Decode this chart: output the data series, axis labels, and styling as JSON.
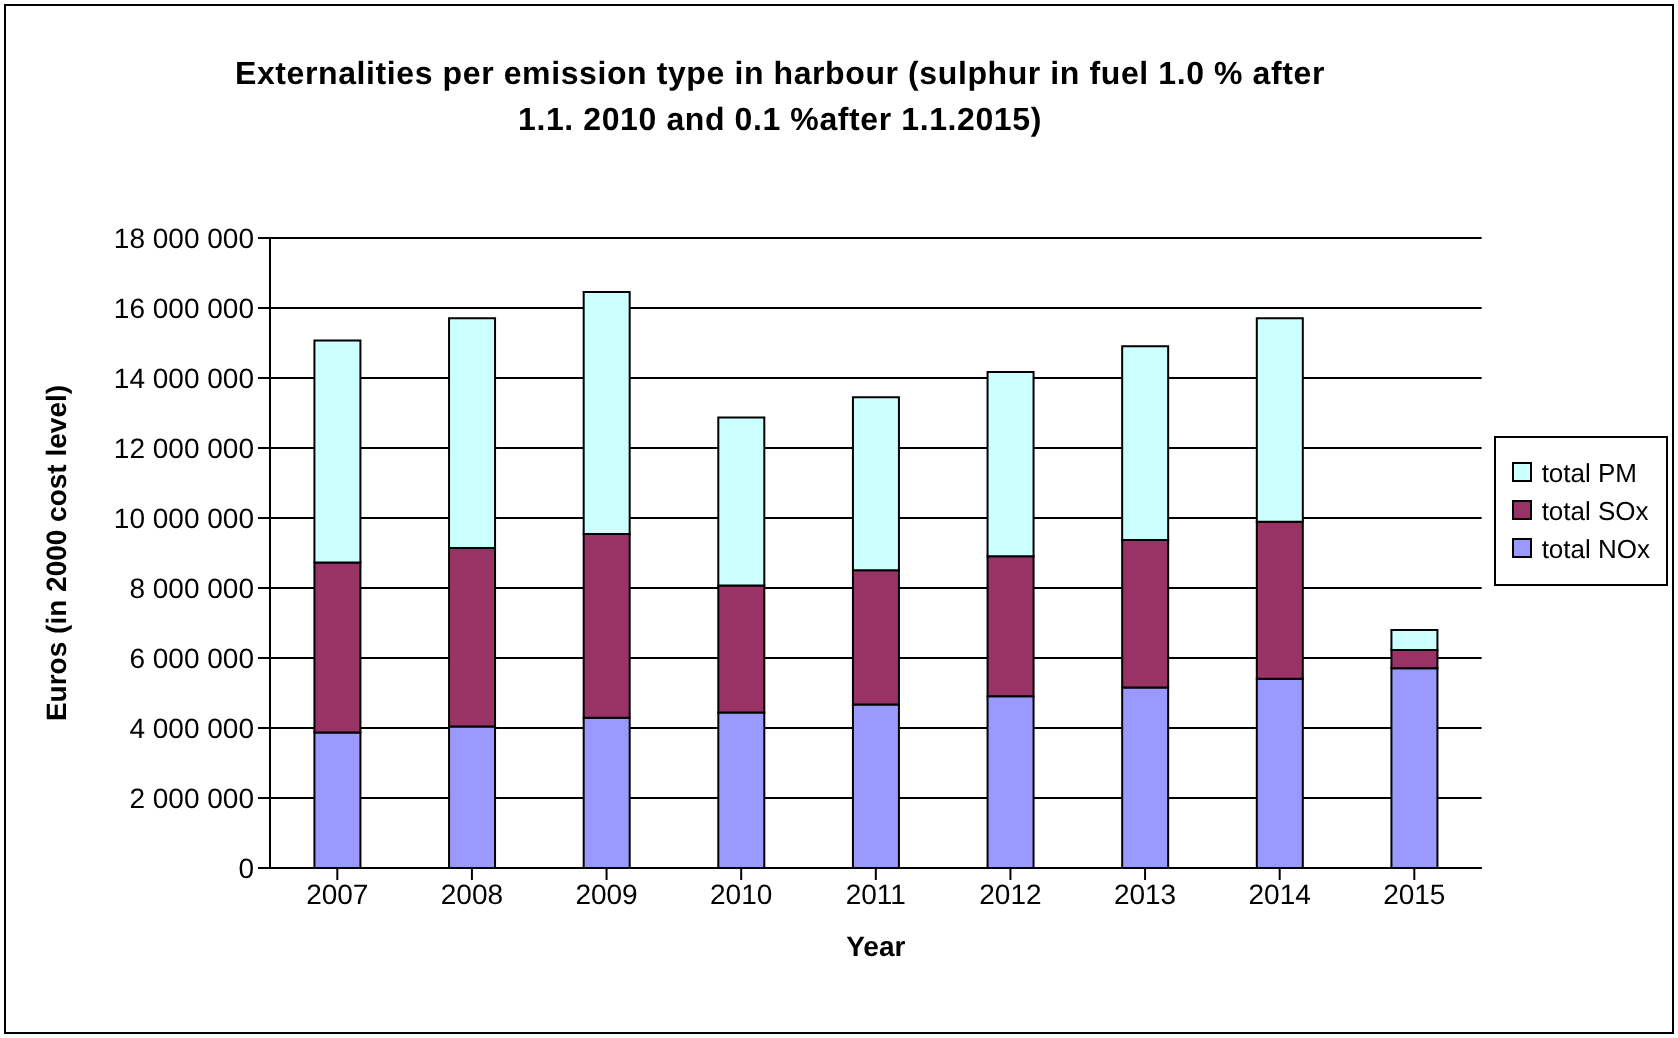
{
  "chart_data": {
    "type": "bar",
    "stacked": true,
    "title": "Externalities per emission type in harbour (sulphur in fuel 1.0 % after 1.1. 2010 and 0.1 %after 1.1.2015)",
    "xlabel": "Year",
    "ylabel": "Euros (in 2000 cost level)",
    "categories": [
      "2007",
      "2008",
      "2009",
      "2010",
      "2011",
      "2012",
      "2013",
      "2014",
      "2015"
    ],
    "series": [
      {
        "name": "total NOx",
        "color": "#9999ff",
        "values": [
          3870000,
          4040000,
          4290000,
          4440000,
          4670000,
          4910000,
          5160000,
          5410000,
          5710000
        ]
      },
      {
        "name": "total SOx",
        "color": "#993366",
        "values": [
          4860000,
          5100000,
          5250000,
          3630000,
          3840000,
          4000000,
          4210000,
          4480000,
          520000
        ]
      },
      {
        "name": "total PM",
        "color": "#ccffff",
        "values": [
          6340000,
          6570000,
          6920000,
          4800000,
          4940000,
          5260000,
          5540000,
          5820000,
          570000
        ]
      }
    ],
    "ylim": [
      0,
      18000000
    ],
    "yticks": [
      {
        "value": 0,
        "label": "0"
      },
      {
        "value": 2000000,
        "label": "2 000 000"
      },
      {
        "value": 4000000,
        "label": "4 000 000"
      },
      {
        "value": 6000000,
        "label": "6 000 000"
      },
      {
        "value": 8000000,
        "label": "8 000 000"
      },
      {
        "value": 10000000,
        "label": "10 000 000"
      },
      {
        "value": 12000000,
        "label": "12 000 000"
      },
      {
        "value": 14000000,
        "label": "14 000 000"
      },
      {
        "value": 16000000,
        "label": "16 000 000"
      },
      {
        "value": 18000000,
        "label": "18 000 000"
      }
    ],
    "grid": "y",
    "legend": "right"
  }
}
